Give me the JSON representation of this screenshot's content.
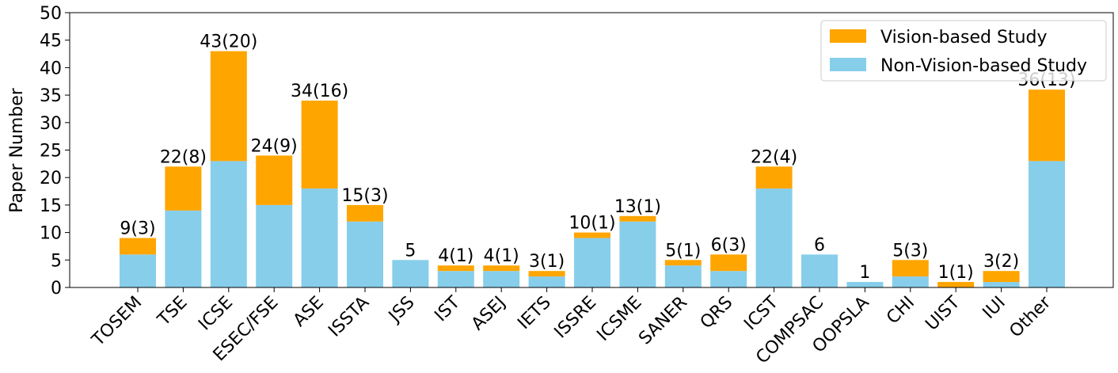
{
  "chart_data": {
    "type": "stacked-bar",
    "y_label": "Paper Number",
    "categories": [
      "TOSEM",
      "TSE",
      "ICSE",
      "ESEC/FSE",
      "ASE",
      "ISSTA",
      "JSS",
      "IST",
      "ASEJ",
      "IETS",
      "ISSRE",
      "ICSME",
      "SANER",
      "QRS",
      "ICST",
      "COMPSAC",
      "OOPSLA",
      "CHI",
      "UIST",
      "IUI",
      "Other"
    ],
    "series": [
      {
        "name": "Non-Vision-based Study",
        "color": "#87ceeb",
        "values": [
          6,
          14,
          23,
          15,
          18,
          12,
          5,
          3,
          3,
          2,
          9,
          12,
          4,
          3,
          18,
          6,
          1,
          2,
          0,
          1,
          23
        ]
      },
      {
        "name": "Vision-based Study",
        "color": "#ffa500",
        "values": [
          3,
          8,
          20,
          9,
          16,
          3,
          0,
          1,
          1,
          1,
          1,
          1,
          1,
          3,
          4,
          0,
          0,
          3,
          1,
          2,
          13
        ]
      }
    ],
    "bar_labels": [
      "9(3)",
      "22(8)",
      "43(20)",
      "24(9)",
      "34(16)",
      "15(3)",
      "5",
      "4(1)",
      "4(1)",
      "3(1)",
      "10(1)",
      "13(1)",
      "5(1)",
      "6(3)",
      "22(4)",
      "6",
      "1",
      "5(3)",
      "1(1)",
      "3(2)",
      "36(13)"
    ],
    "ylim": [
      0,
      50
    ],
    "yticks": [
      0,
      5,
      10,
      15,
      20,
      25,
      30,
      35,
      40,
      45,
      50
    ],
    "legend": "upper right"
  }
}
